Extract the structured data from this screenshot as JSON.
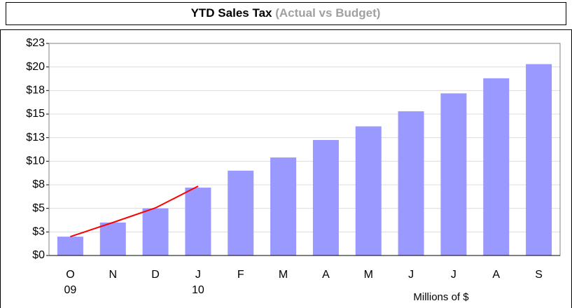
{
  "chart_data": {
    "type": "bar",
    "title": "YTD Sales Tax",
    "subtitle": "(Actual vs Budget)",
    "x_note": "Millions of $",
    "categories": [
      "O",
      "N",
      "D",
      "J",
      "F",
      "M",
      "A",
      "M",
      "J",
      "J",
      "A",
      "S"
    ],
    "year_labels": [
      "09",
      null,
      null,
      "10",
      null,
      null,
      null,
      null,
      null,
      null,
      null,
      null
    ],
    "series": [
      {
        "type": "bar",
        "color": "#9999ff",
        "values": [
          2.0,
          3.5,
          5.0,
          7.2,
          9.0,
          10.4,
          12.25,
          13.7,
          15.3,
          17.2,
          18.8,
          20.3
        ]
      },
      {
        "type": "line",
        "color": "#ff0000",
        "values": [
          2.0,
          3.5,
          5.05,
          7.35,
          null,
          null,
          null,
          null,
          null,
          null,
          null,
          null
        ]
      }
    ],
    "ylim": [
      0,
      22.5
    ],
    "yticks": [
      {
        "value": 0,
        "label": "$0"
      },
      {
        "value": 2.5,
        "label": "$3"
      },
      {
        "value": 5,
        "label": "$5"
      },
      {
        "value": 7.5,
        "label": "$8"
      },
      {
        "value": 10,
        "label": "$10"
      },
      {
        "value": 12.5,
        "label": "$13"
      },
      {
        "value": 15,
        "label": "$15"
      },
      {
        "value": 17.5,
        "label": "$18"
      },
      {
        "value": 20,
        "label": "$20"
      },
      {
        "value": 22.5,
        "label": "$23"
      }
    ],
    "grid": true
  }
}
